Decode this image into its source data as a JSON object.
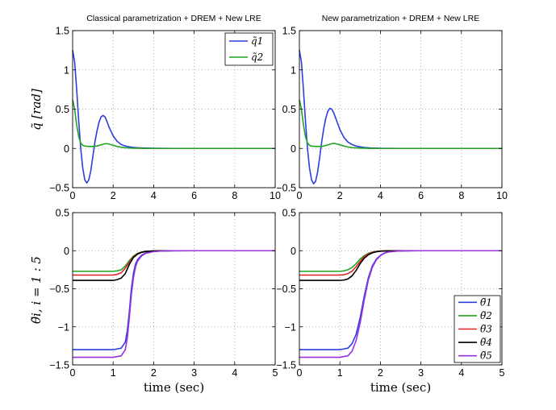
{
  "chart_data": [
    {
      "type": "line",
      "title": "Classical parametrization + DREM + New LRE",
      "xlabel": "",
      "ylabel": "q̃ [rad]",
      "xlim": [
        0,
        10
      ],
      "ylim": [
        -0.5,
        1.5
      ],
      "xticks": [
        0,
        2,
        4,
        6,
        8,
        10
      ],
      "yticks": [
        -0.5,
        0,
        0.5,
        1,
        1.5
      ],
      "xtick_labels": [
        "0",
        "2",
        "4",
        "6",
        "8",
        "10"
      ],
      "ytick_labels": [
        "−0.5",
        "0",
        "0.5",
        "1",
        "1.5"
      ],
      "grid": true,
      "legend_position": "top-right",
      "series": [
        {
          "name": "q̃1",
          "color": "#2b3fde",
          "x": [
            0,
            0.1,
            0.2,
            0.3,
            0.4,
            0.5,
            0.6,
            0.7,
            0.8,
            0.9,
            1.0,
            1.1,
            1.2,
            1.3,
            1.4,
            1.5,
            1.6,
            1.7,
            1.8,
            2.0,
            2.2,
            2.4,
            2.6,
            2.8,
            3.0,
            3.2,
            3.5,
            4.0,
            5,
            6,
            7,
            8,
            9,
            10
          ],
          "y": [
            1.25,
            1.1,
            0.75,
            0.35,
            0.0,
            -0.25,
            -0.4,
            -0.44,
            -0.4,
            -0.28,
            -0.1,
            0.08,
            0.22,
            0.33,
            0.4,
            0.42,
            0.4,
            0.34,
            0.27,
            0.16,
            0.09,
            0.05,
            0.03,
            0.02,
            0.012,
            0.008,
            0.005,
            0.002,
            0,
            0,
            0,
            0,
            0,
            0
          ]
        },
        {
          "name": "q̃2",
          "color": "#22a322",
          "x": [
            0,
            0.1,
            0.2,
            0.3,
            0.4,
            0.5,
            0.6,
            0.8,
            1.0,
            1.2,
            1.4,
            1.6,
            1.7,
            1.8,
            2.0,
            2.2,
            2.4,
            2.6,
            3.0,
            3.5,
            4,
            5,
            6,
            7,
            8,
            9,
            10
          ],
          "y": [
            0.62,
            0.5,
            0.3,
            0.15,
            0.07,
            0.04,
            0.03,
            0.025,
            0.025,
            0.03,
            0.045,
            0.06,
            0.06,
            0.055,
            0.04,
            0.025,
            0.015,
            0.008,
            0.003,
            0.001,
            0,
            0,
            0,
            0,
            0,
            0,
            0
          ]
        }
      ]
    },
    {
      "type": "line",
      "title": "New parametrization + DREM + New LRE",
      "xlabel": "",
      "ylabel": "",
      "xlim": [
        0,
        10
      ],
      "ylim": [
        -0.5,
        1.5
      ],
      "xticks": [
        0,
        2,
        4,
        6,
        8,
        10
      ],
      "yticks": [
        -0.5,
        0,
        0.5,
        1,
        1.5
      ],
      "xtick_labels": [
        "0",
        "2",
        "4",
        "6",
        "8",
        "10"
      ],
      "ytick_labels": [
        "−0.5",
        "0",
        "0.5",
        "1",
        "1.5"
      ],
      "grid": true,
      "series": [
        {
          "name": "q̃1",
          "color": "#2b3fde",
          "x": [
            0,
            0.1,
            0.2,
            0.3,
            0.4,
            0.5,
            0.6,
            0.7,
            0.8,
            0.9,
            1.0,
            1.1,
            1.2,
            1.3,
            1.4,
            1.5,
            1.6,
            1.7,
            1.8,
            1.9,
            2.0,
            2.2,
            2.4,
            2.6,
            2.8,
            3.0,
            3.2,
            3.5,
            4.0,
            5,
            6,
            7,
            8,
            9,
            10
          ],
          "y": [
            1.25,
            1.1,
            0.75,
            0.35,
            0.0,
            -0.25,
            -0.4,
            -0.45,
            -0.42,
            -0.3,
            -0.12,
            0.08,
            0.25,
            0.38,
            0.47,
            0.51,
            0.5,
            0.45,
            0.38,
            0.31,
            0.24,
            0.14,
            0.08,
            0.05,
            0.03,
            0.02,
            0.012,
            0.006,
            0.002,
            0,
            0,
            0,
            0,
            0,
            0
          ]
        },
        {
          "name": "q̃2",
          "color": "#22a322",
          "x": [
            0,
            0.1,
            0.2,
            0.3,
            0.4,
            0.5,
            0.6,
            0.8,
            1.0,
            1.2,
            1.4,
            1.6,
            1.7,
            1.8,
            2.0,
            2.2,
            2.4,
            2.6,
            3.0,
            3.5,
            4,
            5,
            6,
            7,
            8,
            9,
            10
          ],
          "y": [
            0.62,
            0.5,
            0.3,
            0.15,
            0.07,
            0.04,
            0.03,
            0.025,
            0.025,
            0.03,
            0.045,
            0.06,
            0.065,
            0.06,
            0.045,
            0.03,
            0.018,
            0.01,
            0.004,
            0.001,
            0,
            0,
            0,
            0,
            0,
            0,
            0
          ]
        }
      ]
    },
    {
      "type": "line",
      "title": "",
      "xlabel": "time (sec)",
      "ylabel": "θ̃i,  i = 1 : 5",
      "xlim": [
        0,
        5
      ],
      "ylim": [
        -1.5,
        0.5
      ],
      "xticks": [
        0,
        1,
        2,
        3,
        4,
        5
      ],
      "yticks": [
        -1.5,
        -1,
        -0.5,
        0,
        0.5
      ],
      "xtick_labels": [
        "0",
        "1",
        "2",
        "3",
        "4",
        "5"
      ],
      "ytick_labels": [
        "−1.5",
        "−1",
        "−0.5",
        "0",
        "0.5"
      ],
      "grid": true,
      "series": [
        {
          "name": "θ̃1",
          "color": "#2b3fde",
          "x": [
            0,
            0.5,
            1.0,
            1.2,
            1.3,
            1.35,
            1.4,
            1.45,
            1.5,
            1.55,
            1.6,
            1.7,
            1.8,
            2.0,
            2.2,
            2.5,
            3,
            4,
            5
          ],
          "y": [
            -1.3,
            -1.3,
            -1.3,
            -1.28,
            -1.2,
            -1.05,
            -0.8,
            -0.5,
            -0.3,
            -0.18,
            -0.12,
            -0.06,
            -0.03,
            -0.01,
            -0.004,
            -0.001,
            0,
            0,
            0
          ]
        },
        {
          "name": "θ̃2",
          "color": "#22a322",
          "x": [
            0,
            0.5,
            1.0,
            1.1,
            1.2,
            1.3,
            1.4,
            1.5,
            1.6,
            1.7,
            1.8,
            2.0,
            2.2,
            2.5,
            3,
            4,
            5
          ],
          "y": [
            -0.27,
            -0.27,
            -0.27,
            -0.265,
            -0.25,
            -0.2,
            -0.13,
            -0.07,
            -0.035,
            -0.017,
            -0.008,
            -0.002,
            -0.001,
            0,
            0,
            0,
            0
          ]
        },
        {
          "name": "θ̃3",
          "color": "#e02020",
          "x": [
            0,
            0.5,
            1.0,
            1.1,
            1.2,
            1.3,
            1.4,
            1.5,
            1.6,
            1.7,
            1.8,
            2.0,
            2.2,
            2.5,
            3,
            4,
            5
          ],
          "y": [
            -0.32,
            -0.32,
            -0.32,
            -0.31,
            -0.29,
            -0.23,
            -0.15,
            -0.08,
            -0.04,
            -0.02,
            -0.01,
            -0.003,
            -0.001,
            0,
            0,
            0,
            0
          ]
        },
        {
          "name": "θ̃4",
          "color": "#000000",
          "x": [
            0,
            0.5,
            1.0,
            1.1,
            1.2,
            1.3,
            1.4,
            1.5,
            1.6,
            1.7,
            1.8,
            2.0,
            2.2,
            2.5,
            3,
            4,
            5
          ],
          "y": [
            -0.39,
            -0.39,
            -0.39,
            -0.38,
            -0.36,
            -0.3,
            -0.18,
            -0.09,
            -0.045,
            -0.022,
            -0.01,
            -0.003,
            -0.001,
            0,
            0,
            0,
            0
          ]
        },
        {
          "name": "θ̃5",
          "color": "#9b30e0",
          "x": [
            0,
            0.5,
            1.0,
            1.2,
            1.3,
            1.35,
            1.4,
            1.45,
            1.5,
            1.55,
            1.6,
            1.7,
            1.8,
            2.0,
            2.2,
            2.5,
            3,
            4,
            5
          ],
          "y": [
            -1.4,
            -1.4,
            -1.4,
            -1.38,
            -1.3,
            -1.15,
            -0.88,
            -0.58,
            -0.36,
            -0.22,
            -0.14,
            -0.07,
            -0.035,
            -0.012,
            -0.004,
            -0.001,
            0,
            0,
            0
          ]
        }
      ]
    },
    {
      "type": "line",
      "title": "",
      "xlabel": "time (sec)",
      "ylabel": "",
      "xlim": [
        0,
        5
      ],
      "ylim": [
        -1.5,
        0.5
      ],
      "xticks": [
        0,
        1,
        2,
        3,
        4,
        5
      ],
      "yticks": [
        -1.5,
        -1,
        -0.5,
        0,
        0.5
      ],
      "xtick_labels": [
        "0",
        "1",
        "2",
        "3",
        "4",
        "5"
      ],
      "ytick_labels": [
        "−1.5",
        "−1",
        "−0.5",
        "0",
        "0.5"
      ],
      "grid": true,
      "legend_position": "bottom-right",
      "series": [
        {
          "name": "θ̃1",
          "color": "#2b3fde",
          "x": [
            0,
            0.5,
            1.0,
            1.2,
            1.3,
            1.4,
            1.5,
            1.6,
            1.7,
            1.8,
            1.9,
            2.0,
            2.1,
            2.2,
            2.4,
            2.6,
            3,
            4,
            5
          ],
          "y": [
            -1.3,
            -1.3,
            -1.3,
            -1.28,
            -1.22,
            -1.1,
            -0.88,
            -0.6,
            -0.36,
            -0.2,
            -0.11,
            -0.06,
            -0.03,
            -0.015,
            -0.005,
            -0.002,
            0,
            0,
            0
          ]
        },
        {
          "name": "θ̃2",
          "color": "#22a322",
          "x": [
            0,
            0.5,
            1.0,
            1.1,
            1.2,
            1.3,
            1.4,
            1.5,
            1.6,
            1.7,
            1.8,
            1.9,
            2.0,
            2.2,
            2.5,
            3,
            4,
            5
          ],
          "y": [
            -0.27,
            -0.27,
            -0.27,
            -0.265,
            -0.25,
            -0.22,
            -0.17,
            -0.11,
            -0.065,
            -0.035,
            -0.018,
            -0.009,
            -0.004,
            -0.001,
            0,
            0,
            0,
            0
          ]
        },
        {
          "name": "θ̃3",
          "color": "#e02020",
          "x": [
            0,
            0.5,
            1.0,
            1.1,
            1.2,
            1.3,
            1.4,
            1.5,
            1.6,
            1.7,
            1.8,
            1.9,
            2.0,
            2.2,
            2.5,
            3,
            4,
            5
          ],
          "y": [
            -0.32,
            -0.32,
            -0.32,
            -0.315,
            -0.3,
            -0.27,
            -0.21,
            -0.14,
            -0.08,
            -0.045,
            -0.022,
            -0.011,
            -0.005,
            -0.001,
            0,
            0,
            0,
            0
          ]
        },
        {
          "name": "θ̃4",
          "color": "#000000",
          "x": [
            0,
            0.5,
            1.0,
            1.1,
            1.2,
            1.3,
            1.4,
            1.5,
            1.6,
            1.7,
            1.8,
            1.9,
            2.0,
            2.2,
            2.5,
            3,
            4,
            5
          ],
          "y": [
            -0.39,
            -0.39,
            -0.39,
            -0.385,
            -0.37,
            -0.33,
            -0.26,
            -0.17,
            -0.1,
            -0.055,
            -0.028,
            -0.014,
            -0.006,
            -0.002,
            0,
            0,
            0,
            0
          ]
        },
        {
          "name": "θ̃5",
          "color": "#9b30e0",
          "x": [
            0,
            0.5,
            1.0,
            1.2,
            1.3,
            1.4,
            1.5,
            1.6,
            1.7,
            1.8,
            1.9,
            2.0,
            2.1,
            2.2,
            2.4,
            2.6,
            3,
            4,
            5
          ],
          "y": [
            -1.4,
            -1.4,
            -1.4,
            -1.38,
            -1.32,
            -1.18,
            -0.95,
            -0.65,
            -0.39,
            -0.22,
            -0.12,
            -0.065,
            -0.033,
            -0.016,
            -0.006,
            -0.002,
            0,
            0,
            0
          ]
        }
      ]
    }
  ]
}
